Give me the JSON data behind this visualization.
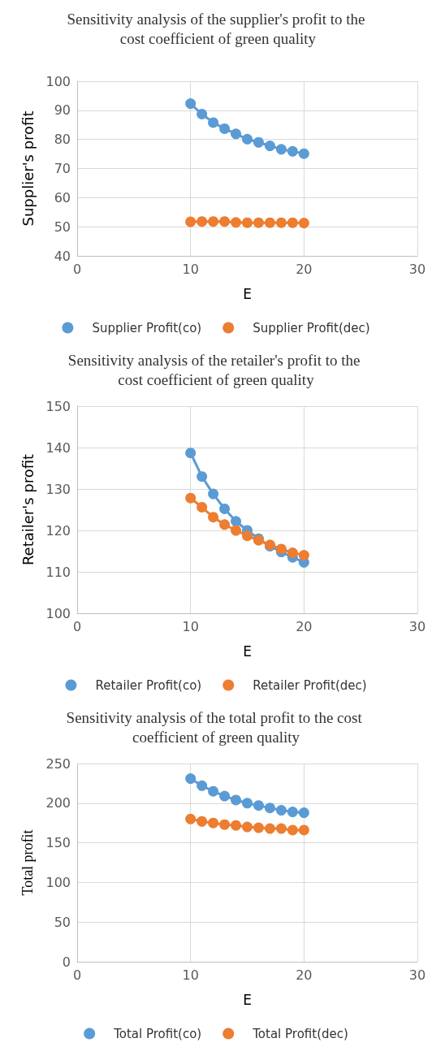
{
  "chart_data": [
    {
      "type": "line",
      "title": "Sensitivity analysis of the supplier's profit to the cost coefficient of green quality",
      "xlabel": "E",
      "ylabel": "Supplier's profit",
      "x": [
        10,
        11,
        12,
        13,
        14,
        15,
        16,
        17,
        18,
        19,
        20
      ],
      "series": [
        {
          "name": "Supplier Profit(co)",
          "color": "#5b9bd5",
          "values": [
            92.3,
            88.7,
            85.8,
            83.7,
            81.9,
            80.1,
            79.0,
            77.8,
            76.6,
            75.9,
            75.1
          ]
        },
        {
          "name": "Supplier Profit(dec)",
          "color": "#ed7d31",
          "values": [
            51.7,
            51.8,
            51.8,
            51.8,
            51.5,
            51.4,
            51.4,
            51.4,
            51.4,
            51.4,
            51.3
          ]
        }
      ],
      "xlim": [
        0,
        30
      ],
      "xticks": [
        0,
        10,
        20,
        30
      ],
      "ylim": [
        40,
        100
      ],
      "yticks": [
        40,
        50,
        60,
        70,
        80,
        90,
        100
      ],
      "grid": true,
      "legend": "bottom",
      "marker": "circle",
      "line_style": "solid"
    },
    {
      "type": "line",
      "title": "Sensitivity analysis of the retailer's profit to the cost coefficient of green quality",
      "xlabel": "E",
      "ylabel": "Retailer's profit",
      "x": [
        10,
        11,
        12,
        13,
        14,
        15,
        16,
        17,
        18,
        19,
        20
      ],
      "series": [
        {
          "name": "Retailer Profit(co)",
          "color": "#5b9bd5",
          "values": [
            138.7,
            133.0,
            128.8,
            125.2,
            122.2,
            120.0,
            118.0,
            116.2,
            114.8,
            113.5,
            112.3
          ]
        },
        {
          "name": "Retailer Profit(dec)",
          "color": "#ed7d31",
          "values": [
            127.8,
            125.6,
            123.2,
            121.4,
            120.0,
            118.7,
            117.6,
            116.5,
            115.5,
            114.6,
            114.0
          ]
        }
      ],
      "xlim": [
        0,
        30
      ],
      "xticks": [
        0,
        10,
        20,
        30
      ],
      "ylim": [
        100,
        150
      ],
      "yticks": [
        100,
        110,
        120,
        130,
        140,
        150
      ],
      "grid": true,
      "legend": "bottom",
      "marker": "circle",
      "line_style": "solid"
    },
    {
      "type": "line",
      "title": "Sensitivity analysis of the total profit to the cost coefficient of green quality",
      "xlabel": "E",
      "ylabel": "Total profit",
      "x": [
        10,
        11,
        12,
        13,
        14,
        15,
        16,
        17,
        18,
        19,
        20
      ],
      "series": [
        {
          "name": "Total Profit(co)",
          "color": "#5b9bd5",
          "values": [
            231,
            222,
            215,
            209,
            204,
            200,
            197,
            194,
            191,
            189,
            188
          ]
        },
        {
          "name": "Total Profit(dec)",
          "color": "#ed7d31",
          "values": [
            180,
            177,
            175,
            173,
            172,
            170,
            169,
            168,
            168,
            166,
            166
          ]
        }
      ],
      "xlim": [
        0,
        30
      ],
      "xticks": [
        0,
        10,
        20,
        30
      ],
      "ylim": [
        0,
        250
      ],
      "yticks": [
        0,
        50,
        100,
        150,
        200,
        250
      ],
      "grid": true,
      "legend": "bottom",
      "marker": "circle",
      "line_style": "solid"
    }
  ]
}
